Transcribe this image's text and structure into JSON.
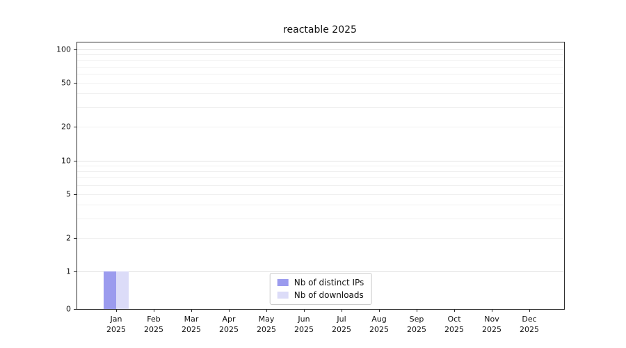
{
  "chart_data": {
    "type": "bar",
    "title": "reactable 2025",
    "categories": [
      "Jan\n2025",
      "Feb\n2025",
      "Mar\n2025",
      "Apr\n2025",
      "May\n2025",
      "Jun\n2025",
      "Jul\n2025",
      "Aug\n2025",
      "Sep\n2025",
      "Oct\n2025",
      "Nov\n2025",
      "Dec\n2025"
    ],
    "series": [
      {
        "name": "Nb of distinct IPs",
        "color": "#9b9bee",
        "values": [
          1,
          0,
          0,
          0,
          0,
          0,
          0,
          0,
          0,
          0,
          0,
          0
        ]
      },
      {
        "name": "Nb of downloads",
        "color": "#dcdcf8",
        "values": [
          1,
          0,
          0,
          0,
          0,
          0,
          0,
          0,
          0,
          0,
          0,
          0
        ]
      }
    ],
    "yticks": [
      0,
      1,
      2,
      5,
      10,
      20,
      50,
      100
    ],
    "y_scale": "symlog",
    "ylim": [
      0,
      115
    ],
    "grid": "horizontal",
    "grid_minor_values": [
      2,
      3,
      4,
      5,
      6,
      7,
      8,
      9,
      20,
      30,
      40,
      50,
      60,
      70,
      80,
      90
    ],
    "grid_major_values": [
      1,
      10,
      100
    ],
    "legend_position": "lower-center"
  }
}
